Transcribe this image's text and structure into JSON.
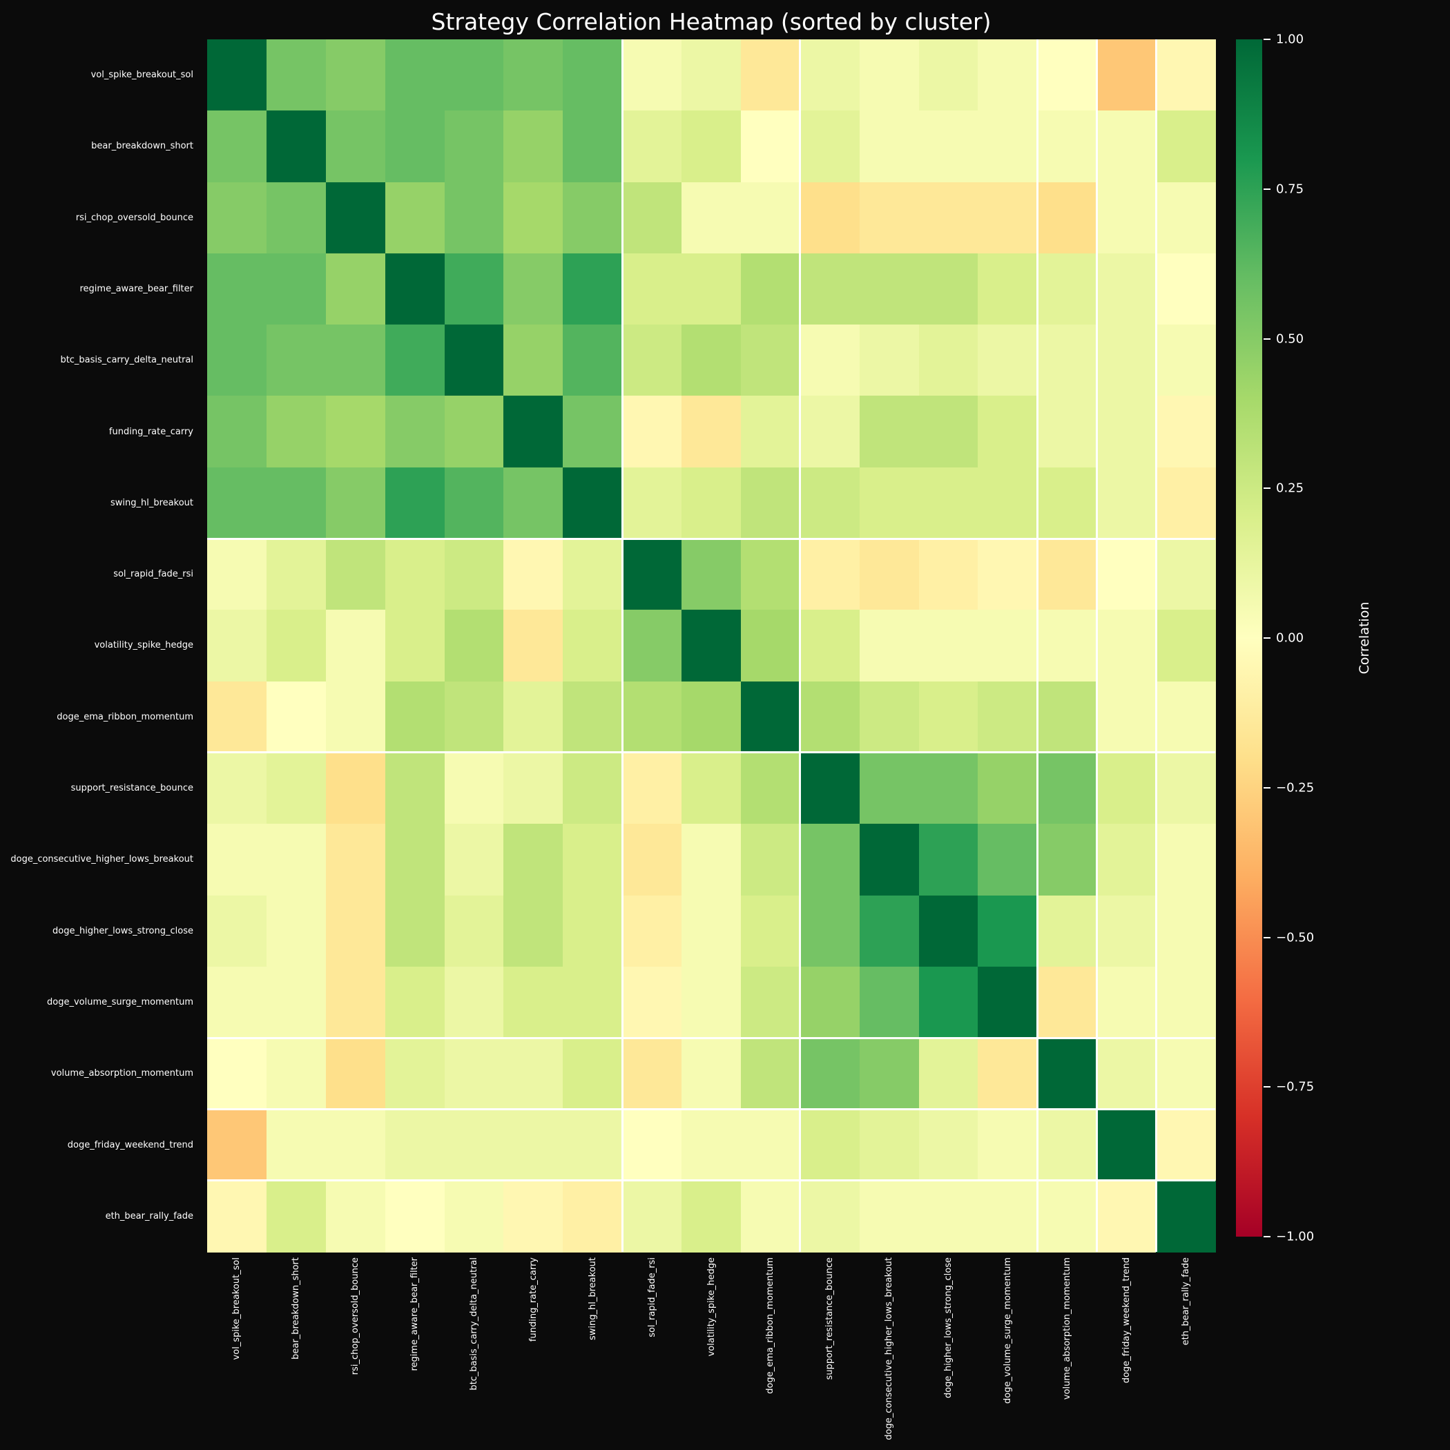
{
  "chart_data": {
    "type": "heatmap",
    "title": "Strategy Correlation Heatmap (sorted by cluster)",
    "xlabel": "",
    "ylabel": "",
    "labels": [
      "vol_spike_breakout_sol",
      "bear_breakdown_short",
      "rsi_chop_oversold_bounce",
      "regime_aware_bear_filter",
      "btc_basis_carry_delta_neutral",
      "funding_rate_carry",
      "swing_hl_breakout",
      "sol_rapid_fade_rsi",
      "volatility_spike_hedge",
      "doge_ema_ribbon_momentum",
      "support_resistance_bounce",
      "doge_consecutive_higher_lows_breakout",
      "doge_higher_lows_strong_close",
      "doge_volume_surge_momentum",
      "volume_absorption_momentum",
      "doge_friday_weekend_trend",
      "eth_bear_rally_fade"
    ],
    "matrix": [
      [
        1.0,
        0.55,
        0.5,
        0.6,
        0.6,
        0.55,
        0.6,
        0.05,
        0.1,
        -0.15,
        0.1,
        0.05,
        0.1,
        0.05,
        0.0,
        -0.3,
        -0.05
      ],
      [
        0.55,
        1.0,
        0.55,
        0.6,
        0.55,
        0.45,
        0.6,
        0.15,
        0.2,
        0.0,
        0.15,
        0.05,
        0.05,
        0.05,
        0.05,
        0.05,
        0.2
      ],
      [
        0.5,
        0.55,
        1.0,
        0.45,
        0.55,
        0.4,
        0.5,
        0.3,
        0.05,
        0.05,
        -0.2,
        -0.15,
        -0.15,
        -0.15,
        -0.2,
        0.05,
        0.05
      ],
      [
        0.6,
        0.6,
        0.45,
        1.0,
        0.7,
        0.5,
        0.75,
        0.2,
        0.2,
        0.35,
        0.3,
        0.3,
        0.3,
        0.2,
        0.15,
        0.1,
        0.0
      ],
      [
        0.6,
        0.55,
        0.55,
        0.7,
        1.0,
        0.45,
        0.65,
        0.25,
        0.35,
        0.3,
        0.05,
        0.1,
        0.15,
        0.1,
        0.1,
        0.1,
        0.05
      ],
      [
        0.55,
        0.45,
        0.4,
        0.5,
        0.45,
        1.0,
        0.55,
        -0.05,
        -0.15,
        0.15,
        0.1,
        0.3,
        0.3,
        0.2,
        0.1,
        0.1,
        -0.05
      ],
      [
        0.6,
        0.6,
        0.5,
        0.75,
        0.65,
        0.55,
        1.0,
        0.15,
        0.2,
        0.3,
        0.25,
        0.2,
        0.2,
        0.2,
        0.2,
        0.1,
        -0.1
      ],
      [
        0.05,
        0.15,
        0.3,
        0.2,
        0.25,
        -0.05,
        0.15,
        1.0,
        0.5,
        0.35,
        -0.1,
        -0.15,
        -0.1,
        -0.05,
        -0.15,
        0.0,
        0.1
      ],
      [
        0.1,
        0.2,
        0.05,
        0.2,
        0.35,
        -0.15,
        0.2,
        0.5,
        1.0,
        0.4,
        0.2,
        0.05,
        0.05,
        0.05,
        0.05,
        0.05,
        0.2
      ],
      [
        -0.15,
        0.0,
        0.05,
        0.35,
        0.3,
        0.15,
        0.3,
        0.35,
        0.4,
        1.0,
        0.35,
        0.25,
        0.2,
        0.25,
        0.3,
        0.05,
        0.05
      ],
      [
        0.1,
        0.15,
        -0.2,
        0.3,
        0.05,
        0.1,
        0.25,
        -0.1,
        0.2,
        0.35,
        1.0,
        0.55,
        0.55,
        0.45,
        0.55,
        0.2,
        0.1
      ],
      [
        0.05,
        0.05,
        -0.15,
        0.3,
        0.1,
        0.3,
        0.2,
        -0.15,
        0.05,
        0.25,
        0.55,
        1.0,
        0.75,
        0.6,
        0.5,
        0.15,
        0.05
      ],
      [
        0.1,
        0.05,
        -0.15,
        0.3,
        0.15,
        0.3,
        0.2,
        -0.1,
        0.05,
        0.2,
        0.55,
        0.75,
        1.0,
        0.8,
        0.15,
        0.1,
        0.05
      ],
      [
        0.05,
        0.05,
        -0.15,
        0.2,
        0.1,
        0.2,
        0.2,
        -0.05,
        0.05,
        0.25,
        0.45,
        0.6,
        0.8,
        1.0,
        -0.15,
        0.05,
        0.05
      ],
      [
        0.0,
        0.05,
        -0.2,
        0.15,
        0.1,
        0.1,
        0.2,
        -0.15,
        0.05,
        0.3,
        0.55,
        0.5,
        0.15,
        -0.15,
        1.0,
        0.1,
        0.05
      ],
      [
        -0.3,
        0.05,
        0.05,
        0.1,
        0.1,
        0.1,
        0.1,
        0.0,
        0.05,
        0.05,
        0.2,
        0.15,
        0.1,
        0.05,
        0.1,
        1.0,
        -0.05
      ],
      [
        -0.05,
        0.2,
        0.05,
        0.0,
        0.05,
        -0.05,
        -0.1,
        0.1,
        0.2,
        0.05,
        0.1,
        0.05,
        0.05,
        0.05,
        0.05,
        -0.05,
        1.0
      ]
    ],
    "vmin": -1,
    "vmax": 1,
    "cluster_boundaries_after": [
      7,
      10,
      14,
      15,
      16
    ],
    "grid_line_color": "#ffffff",
    "background": "#0b0b0b",
    "text_color": "#ffffff",
    "colorscale": {
      "name": "RdYlGn",
      "stops": [
        "#a50026",
        "#d73027",
        "#f46d43",
        "#fdae61",
        "#fee08b",
        "#ffffbf",
        "#d9ef8b",
        "#a6d96a",
        "#66bd63",
        "#1a9850",
        "#006837"
      ]
    },
    "colorbar": {
      "label": "Correlation",
      "ticks": [
        {
          "value": 1.0,
          "label": "1.00"
        },
        {
          "value": 0.75,
          "label": "0.75"
        },
        {
          "value": 0.5,
          "label": "0.50"
        },
        {
          "value": 0.25,
          "label": "0.25"
        },
        {
          "value": 0.0,
          "label": "0.00"
        },
        {
          "value": -0.25,
          "label": "−0.25"
        },
        {
          "value": -0.5,
          "label": "−0.50"
        },
        {
          "value": -0.75,
          "label": "−0.75"
        },
        {
          "value": -1.0,
          "label": "−1.00"
        }
      ]
    },
    "legend": null,
    "grid": false
  }
}
